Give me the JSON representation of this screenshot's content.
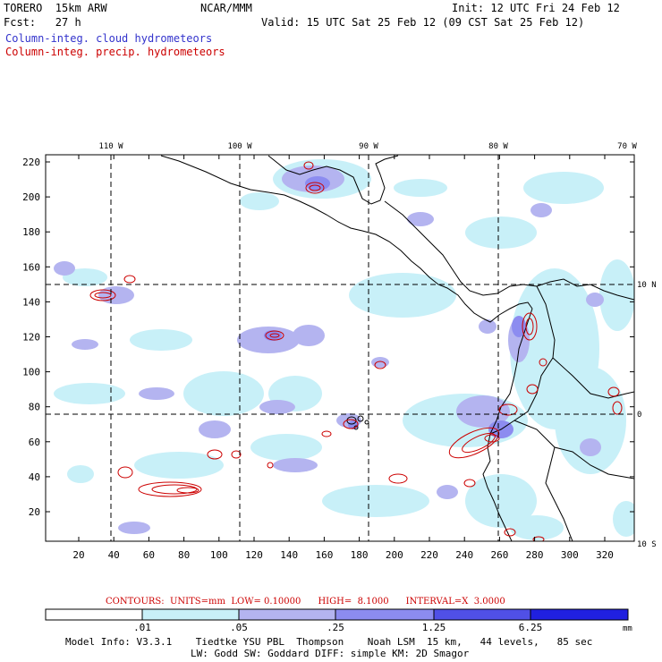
{
  "header": {
    "model": "TORERO  15km ARW",
    "center": "NCAR/MMM",
    "init": "Init: 12 UTC Fri 24 Feb 12",
    "fcst": "Fcst:   27 h",
    "valid": "Valid: 15 UTC Sat 25 Feb 12 (09 CST Sat 25 Feb 12)"
  },
  "legend_lines": {
    "cloud": "Column-integ. cloud hydrometeors",
    "precip": "Column-integ. precip. hydrometeors"
  },
  "colors": {
    "cloud_text": "#3333cc",
    "precip_contour": "#cc0000",
    "coast": "#000000",
    "shade_1": "#c8f0f8",
    "shade_2": "#b4b4f0",
    "shade_3": "#8c8cf0",
    "shade_4": "#5050e6",
    "shade_5": "#2020e0"
  },
  "map": {
    "top_labels": [
      "110 W",
      "100 W",
      "90 W",
      "80 W",
      "70 W"
    ],
    "right_labels": [
      "10 N",
      "0",
      "10 S"
    ],
    "y_ticks": [
      "220",
      "200",
      "180",
      "160",
      "140",
      "120",
      "100",
      "80",
      "60",
      "40",
      "20"
    ],
    "x_ticks": [
      "20",
      "40",
      "60",
      "80",
      "100",
      "120",
      "140",
      "160",
      "180",
      "200",
      "220",
      "240",
      "260",
      "280",
      "300",
      "320"
    ]
  },
  "contour_info": "CONTOURS:  UNITS=mm  LOW= 0.10000      HIGH=  8.1000      INTERVAL=X  3.0000",
  "colorbar": {
    "labels": [
      ".01",
      ".05",
      ".25",
      "1.25",
      "6.25"
    ],
    "unit": "mm"
  },
  "footer": {
    "line1": "Model Info: V3.3.1    Tiedtke YSU PBL  Thompson    Noah LSM  15 km,   44 levels,   85 sec",
    "line2": "LW: Godd SW: Goddard DIFF: simple KM: 2D Smagor"
  }
}
